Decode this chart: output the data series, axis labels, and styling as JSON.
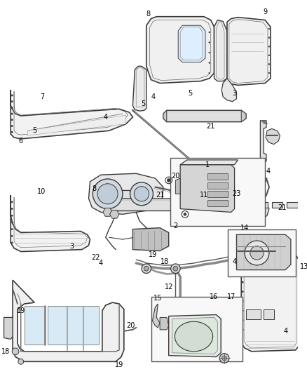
{
  "background_color": "#ffffff",
  "line_color": "#3a3a3a",
  "label_color": "#000000",
  "figsize": [
    4.38,
    5.33
  ],
  "dpi": 100
}
